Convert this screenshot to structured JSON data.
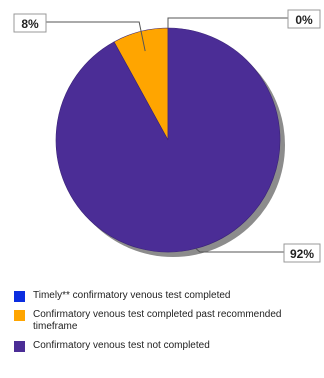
{
  "chart_data": {
    "type": "pie",
    "title": "",
    "slices": [
      {
        "label": "Timely** confirmatory venous test completed",
        "value": 0,
        "data_label": "0%",
        "color": "#0b2de0"
      },
      {
        "label": "Confirmatory venous test completed past recommended timeframe",
        "value": 8,
        "data_label": "8%",
        "color": "#ffa500"
      },
      {
        "label": "Confirmatory venous test not completed",
        "value": 92,
        "data_label": "92%",
        "color": "#4b2d96"
      }
    ],
    "legend": "bottom",
    "shadow_color": "#8c8c8c",
    "callout_border_color": "#999999"
  },
  "legend": {
    "items": [
      {
        "label": "Timely** confirmatory venous test completed",
        "color": "#0b2de0"
      },
      {
        "label": "Confirmatory venous test completed past recommended timeframe",
        "color": "#ffa500"
      },
      {
        "label": "Confirmatory venous test not completed",
        "color": "#4b2d96"
      }
    ]
  }
}
